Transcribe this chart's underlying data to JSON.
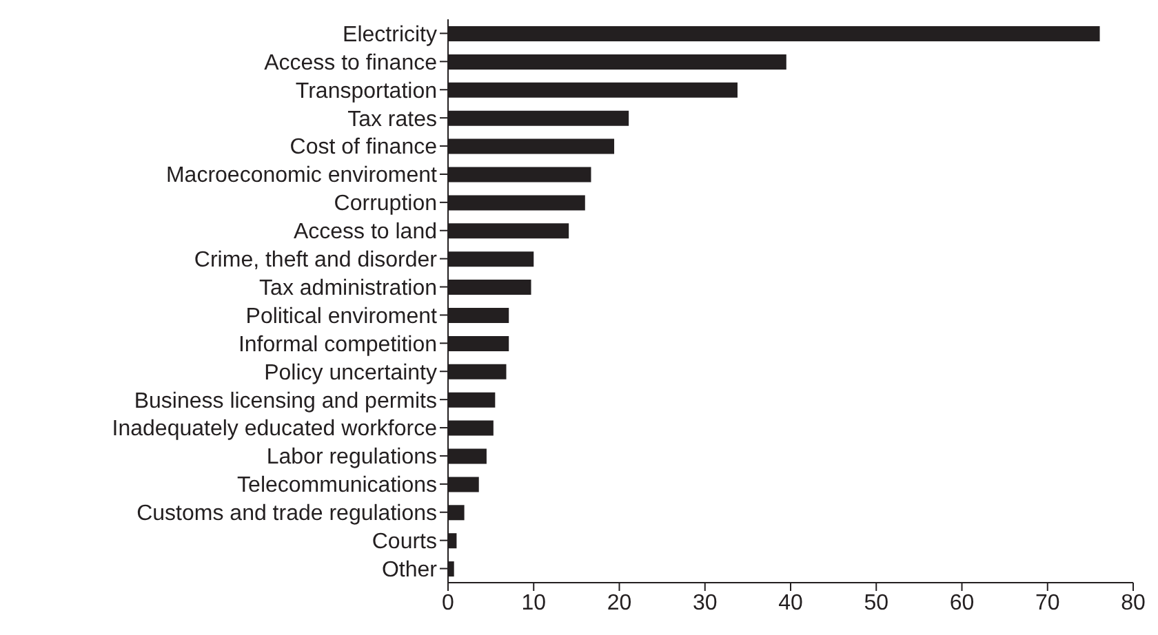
{
  "chart_data": {
    "type": "bar",
    "orientation": "horizontal",
    "categories": [
      "Electricity",
      "Access to finance",
      "Transportation",
      "Tax rates",
      "Cost of finance",
      "Macroeconomic enviroment",
      "Corruption",
      "Access to land",
      "Crime, theft and disorder",
      "Tax administration",
      "Political enviroment",
      "Informal competition",
      "Policy uncertainty",
      "Business licensing and permits",
      "Inadequately educated workforce",
      "Labor regulations",
      "Telecommunications",
      "Customs and trade regulations",
      "Courts",
      "Other"
    ],
    "values": [
      76.1,
      39.5,
      33.8,
      21.1,
      19.4,
      16.7,
      16.0,
      14.1,
      10.0,
      9.7,
      7.1,
      7.1,
      6.8,
      5.5,
      5.3,
      4.5,
      3.6,
      1.9,
      1.0,
      0.7
    ],
    "color": "#231f20",
    "xlim": [
      0,
      80
    ],
    "xticks": [
      0,
      10,
      20,
      30,
      40,
      50,
      60,
      70,
      80
    ],
    "grid": false,
    "legend": false
  }
}
